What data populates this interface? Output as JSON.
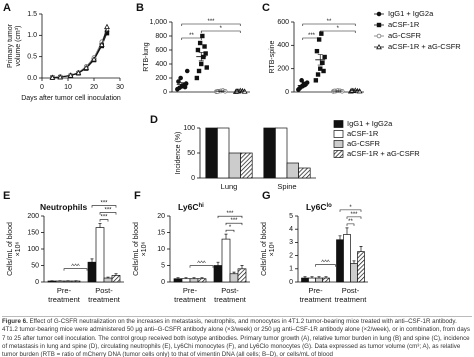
{
  "chart_data": [
    {
      "type": "line",
      "panel": "A",
      "xlabel": "Days after tumor cell inoculation",
      "ylabel": [
        "Primary tumor",
        "volume (cm³)"
      ],
      "x": [
        4,
        7,
        11,
        14,
        17,
        20,
        23,
        25
      ],
      "xlim": [
        0,
        30
      ],
      "xticks": [
        0,
        10,
        20,
        30
      ],
      "ylim": [
        0,
        1.5
      ],
      "yticks": [
        {
          "value": 0,
          "label": "0.0"
        },
        {
          "value": 0.5,
          "label": "0.5"
        },
        {
          "value": 1,
          "label": "1.0"
        },
        {
          "value": 1.5,
          "label": "1.5"
        }
      ],
      "series": [
        {
          "color": "#111111",
          "marker": "circle",
          "open": false,
          "values": [
            0.01,
            0.03,
            0.06,
            0.12,
            0.25,
            0.45,
            0.8,
            1.1
          ]
        },
        {
          "color": "#111111",
          "marker": "square",
          "open": false,
          "values": [
            0.01,
            0.02,
            0.05,
            0.11,
            0.22,
            0.42,
            0.75,
            1.05
          ]
        },
        {
          "color": "#777777",
          "marker": "circle",
          "open": true,
          "values": [
            0.01,
            0.03,
            0.07,
            0.13,
            0.27,
            0.48,
            0.85,
            1.15
          ]
        },
        {
          "color": "#111111",
          "marker": "triangle",
          "open": true,
          "values": [
            0.01,
            0.02,
            0.06,
            0.12,
            0.24,
            0.44,
            0.78,
            1.2
          ]
        }
      ]
    },
    {
      "type": "dotplot",
      "panel": "B",
      "ylabel": [
        "RTB-lung"
      ],
      "ylim": [
        0,
        1000
      ],
      "yticks": [
        0,
        200,
        400,
        600,
        800,
        {
          "value": 1000,
          "label": "1,000"
        }
      ],
      "series": [
        {
          "color": "#111111",
          "marker": "circle",
          "open": false,
          "values": [
            40,
            60,
            80,
            100,
            120,
            150,
            200,
            90,
            70,
            300
          ],
          "mean": 110,
          "error": 25
        },
        {
          "color": "#111111",
          "marker": "square",
          "open": false,
          "values": [
            200,
            300,
            400,
            500,
            550,
            600,
            700,
            800,
            650,
            350
          ],
          "mean": 505,
          "error": 60
        },
        {
          "color": "#777777",
          "marker": "circle",
          "open": true,
          "values": [
            5,
            10,
            15,
            20,
            10,
            8
          ],
          "mean": 12,
          "error": 3
        },
        {
          "color": "#111111",
          "marker": "triangle",
          "open": true,
          "values": [
            5,
            10,
            20,
            15,
            8,
            12
          ],
          "mean": 12,
          "error": 3
        }
      ],
      "annotations": [
        {
          "text": "***",
          "span": [
            0,
            3
          ]
        },
        {
          "text": "*",
          "span": [
            1,
            3
          ]
        },
        {
          "text": "**",
          "span": [
            0,
            1
          ]
        }
      ]
    },
    {
      "type": "dotplot",
      "panel": "C",
      "ylabel": [
        "RTB-spine"
      ],
      "ylim": [
        0,
        600
      ],
      "yticks": [
        0,
        200,
        400,
        600
      ],
      "series": [
        {
          "name": "IgG1 + IgG2a",
          "color": "#111111",
          "marker": "circle",
          "open": false,
          "values": [
            20,
            40,
            50,
            60,
            80,
            30,
            100,
            70
          ],
          "mean": 56,
          "error": 10
        },
        {
          "name": "aCSF-1R",
          "color": "#111111",
          "marker": "square",
          "open": false,
          "values": [
            100,
            150,
            200,
            250,
            300,
            350,
            450,
            500,
            180
          ],
          "mean": 276,
          "error": 45
        },
        {
          "name": "aG-CSFR",
          "color": "#777777",
          "marker": "circle",
          "open": true,
          "values": [
            5,
            8,
            12,
            10,
            6,
            9
          ],
          "mean": 8,
          "error": 2
        },
        {
          "name": "aCSF-1R + aG-CSFR",
          "color": "#111111",
          "marker": "triangle",
          "open": true,
          "values": [
            6,
            10,
            14,
            9,
            7,
            12
          ],
          "mean": 10,
          "error": 2
        }
      ],
      "annotations": [
        {
          "text": "**",
          "span": [
            0,
            3
          ]
        },
        {
          "text": "*",
          "span": [
            1,
            3
          ]
        },
        {
          "text": "***",
          "span": [
            0,
            1
          ]
        }
      ]
    },
    {
      "type": "bar",
      "panel": "D",
      "ylabel": [
        "Incidence (%)"
      ],
      "categories": [
        "Lung",
        "Spine"
      ],
      "ylim": [
        0,
        100
      ],
      "yticks": [
        0,
        50,
        100
      ],
      "series": [
        {
          "name": "IgG1 + IgG2a",
          "color": "#111111",
          "values": [
            100,
            100
          ]
        },
        {
          "name": "aCSF-1R",
          "color": "#ffffff",
          "values": [
            100,
            100
          ]
        },
        {
          "name": "aG-CSFR",
          "color": "#cccccc",
          "values": [
            50,
            30
          ]
        },
        {
          "name": "aCSF-1R + aG-CSFR",
          "color": "#999999",
          "hatch": true,
          "values": [
            50,
            20
          ]
        }
      ]
    },
    {
      "type": "bar",
      "panel": "E",
      "title": "Neutrophils",
      "ylabel": [
        "Cells/mL of blood",
        "×10⁶"
      ],
      "categories": [
        [
          "Pre-",
          "treatment"
        ],
        [
          "Post-",
          "treatment"
        ]
      ],
      "ylim": [
        0,
        200
      ],
      "yticks": [
        0,
        50,
        100,
        150,
        200
      ],
      "series": [
        {
          "color": "#111111",
          "values": [
            3,
            60
          ],
          "errors": [
            1,
            10
          ]
        },
        {
          "color": "#ffffff",
          "values": [
            3,
            165
          ],
          "errors": [
            1,
            12
          ]
        },
        {
          "color": "#cccccc",
          "values": [
            3,
            12
          ],
          "errors": [
            1,
            3
          ]
        },
        {
          "color": "#999999",
          "hatch": true,
          "values": [
            3,
            20
          ],
          "errors": [
            1,
            5
          ]
        }
      ],
      "annotations": [
        {
          "text": "***",
          "group": 1,
          "span": [
            0,
            3
          ]
        },
        {
          "text": "***",
          "group": 1,
          "span": [
            1,
            3
          ]
        },
        {
          "text": "***",
          "group": 1,
          "span": [
            1,
            2
          ]
        },
        {
          "text": "^^^",
          "groups": [
            0,
            1
          ]
        }
      ]
    },
    {
      "type": "bar",
      "panel": "F",
      "title": "Ly6C",
      "title_sup": "hi",
      "ylabel": [
        "Cells/mL of blood",
        "×10⁶"
      ],
      "categories": [
        [
          "Pre-",
          "treatment"
        ],
        [
          "Post-",
          "treatment"
        ]
      ],
      "ylim": [
        0,
        20
      ],
      "yticks": [
        0,
        5,
        10,
        15,
        20
      ],
      "series": [
        {
          "color": "#111111",
          "values": [
            1,
            5
          ],
          "errors": [
            0.3,
            1
          ]
        },
        {
          "color": "#ffffff",
          "values": [
            1,
            13
          ],
          "errors": [
            0.3,
            1.5
          ]
        },
        {
          "color": "#cccccc",
          "values": [
            1,
            2.5
          ],
          "errors": [
            0.3,
            0.5
          ]
        },
        {
          "color": "#999999",
          "hatch": true,
          "values": [
            1,
            4
          ],
          "errors": [
            0.3,
            1
          ]
        }
      ],
      "annotations": [
        {
          "text": "***",
          "group": 1,
          "span": [
            0,
            3
          ]
        },
        {
          "text": "***",
          "group": 1,
          "span": [
            1,
            3
          ]
        },
        {
          "text": "*",
          "group": 1,
          "span": [
            1,
            2
          ]
        },
        {
          "text": "^^^",
          "groups": [
            0,
            1
          ]
        }
      ]
    },
    {
      "type": "bar",
      "panel": "G",
      "title": "Ly6C",
      "title_sup": "lo",
      "ylabel": [
        "Cells/mL of blood",
        "×10⁶"
      ],
      "categories": [
        [
          "Pre-",
          "treatment"
        ],
        [
          "Post-",
          "treatment"
        ]
      ],
      "ylim": [
        0,
        5
      ],
      "yticks": [
        0,
        1,
        2,
        3,
        4,
        5
      ],
      "series": [
        {
          "color": "#111111",
          "values": [
            0.3,
            3.2
          ],
          "errors": [
            0.1,
            0.3
          ]
        },
        {
          "color": "#ffffff",
          "values": [
            0.3,
            3.6
          ],
          "errors": [
            0.1,
            0.5
          ]
        },
        {
          "color": "#cccccc",
          "values": [
            0.3,
            1.4
          ],
          "errors": [
            0.1,
            0.2
          ]
        },
        {
          "color": "#999999",
          "hatch": true,
          "values": [
            0.3,
            2.3
          ],
          "errors": [
            0.1,
            0.4
          ]
        }
      ],
      "annotations": [
        {
          "text": "*",
          "group": 1,
          "span": [
            0,
            3
          ]
        },
        {
          "text": "***",
          "group": 1,
          "span": [
            1,
            3
          ]
        },
        {
          "text": "**",
          "group": 1,
          "span": [
            1,
            2
          ]
        },
        {
          "text": "^^^",
          "groups": [
            0,
            1
          ]
        }
      ]
    }
  ],
  "caption": {
    "label": "Figure 6.",
    "text": "Effect of G-CSFR neutralization on the increases in metastasis, neutrophils, and monocytes in 4T1.2 tumor-bearing mice treated with anti–CSF-1R antibody. 4T1.2 tumor-bearing mice were administered 50 μg anti–G-CSFR antibody alone (×3/week) or 250 μg anti–CSF-1R antibody alone (×2/week), or in combination, from days 7 to 25 after tumor cell inoculation. The control group received both isotype antibodies. Primary tumor growth (A), relative tumor burden in lung (B) and spine (C), incidence of metastasis in lung and spine (D), circulating neutrophils (E), Ly6Chi monocytes (F), and Ly6Clo monocytes (G). Data expressed as tumor volume (cm³; A), as relative tumor burden (RTB = ratio of mCherry DNA (tumor cells only) to that of vimentin DNA (all cells; B–D), or cells/mL of blood"
  }
}
